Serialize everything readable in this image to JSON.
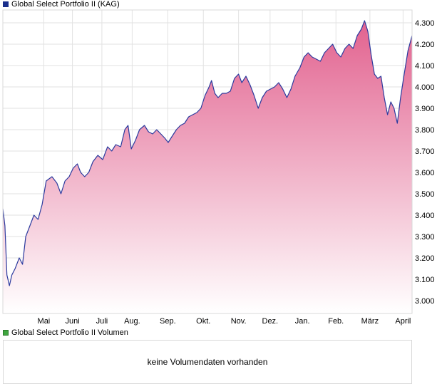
{
  "legend_price": {
    "label": "Global Select Portfolio II (KAG)",
    "color": "#1a2f8c"
  },
  "legend_volume": {
    "label": "Global Select Portfolio II Volumen",
    "color": "#3fa63f"
  },
  "volume_message": "keine Volumendaten vorhanden",
  "colors": {
    "line": "#2b3a9e",
    "fill_top": "#e2628f",
    "fill_bottom": "#ffffff",
    "grid": "#e2e2e2",
    "border": "#d8d8d8"
  },
  "chart_data": {
    "type": "area",
    "xlabel": "",
    "ylabel": "",
    "ylim": [
      2.94,
      4.36
    ],
    "y_ticks": [
      3.0,
      3.1,
      3.2,
      3.3,
      3.4,
      3.5,
      3.6,
      3.7,
      3.8,
      3.9,
      4.0,
      4.1,
      4.2,
      4.3
    ],
    "y_tick_labels": [
      "3.000",
      "3.100",
      "3.200",
      "3.300",
      "3.400",
      "3.500",
      "3.600",
      "3.700",
      "3.800",
      "3.900",
      "4.000",
      "4.100",
      "4.200",
      "4.300"
    ],
    "x_ticks": [
      {
        "label": "Mai",
        "pos": 0.1
      },
      {
        "label": "Juni",
        "pos": 0.17
      },
      {
        "label": "Juli",
        "pos": 0.242
      },
      {
        "label": "Aug.",
        "pos": 0.316
      },
      {
        "label": "Sep.",
        "pos": 0.403
      },
      {
        "label": "Okt.",
        "pos": 0.49
      },
      {
        "label": "Nov.",
        "pos": 0.576
      },
      {
        "label": "Dez.",
        "pos": 0.653
      },
      {
        "label": "Jan.",
        "pos": 0.732
      },
      {
        "label": "Feb.",
        "pos": 0.814
      },
      {
        "label": "März",
        "pos": 0.897
      },
      {
        "label": "April",
        "pos": 0.978
      }
    ],
    "series": [
      {
        "name": "Global Select Portfolio II (KAG)",
        "points": [
          [
            0.0,
            3.43
          ],
          [
            0.005,
            3.35
          ],
          [
            0.01,
            3.12
          ],
          [
            0.016,
            3.07
          ],
          [
            0.022,
            3.12
          ],
          [
            0.03,
            3.15
          ],
          [
            0.04,
            3.2
          ],
          [
            0.048,
            3.17
          ],
          [
            0.056,
            3.3
          ],
          [
            0.066,
            3.35
          ],
          [
            0.076,
            3.4
          ],
          [
            0.086,
            3.38
          ],
          [
            0.096,
            3.45
          ],
          [
            0.106,
            3.56
          ],
          [
            0.12,
            3.58
          ],
          [
            0.132,
            3.55
          ],
          [
            0.142,
            3.5
          ],
          [
            0.152,
            3.56
          ],
          [
            0.162,
            3.58
          ],
          [
            0.172,
            3.62
          ],
          [
            0.182,
            3.64
          ],
          [
            0.19,
            3.6
          ],
          [
            0.2,
            3.58
          ],
          [
            0.21,
            3.6
          ],
          [
            0.22,
            3.65
          ],
          [
            0.232,
            3.68
          ],
          [
            0.244,
            3.66
          ],
          [
            0.256,
            3.72
          ],
          [
            0.266,
            3.7
          ],
          [
            0.276,
            3.73
          ],
          [
            0.288,
            3.72
          ],
          [
            0.298,
            3.8
          ],
          [
            0.306,
            3.82
          ],
          [
            0.314,
            3.71
          ],
          [
            0.324,
            3.75
          ],
          [
            0.334,
            3.8
          ],
          [
            0.346,
            3.82
          ],
          [
            0.356,
            3.79
          ],
          [
            0.366,
            3.78
          ],
          [
            0.376,
            3.8
          ],
          [
            0.386,
            3.78
          ],
          [
            0.396,
            3.76
          ],
          [
            0.404,
            3.74
          ],
          [
            0.414,
            3.77
          ],
          [
            0.424,
            3.8
          ],
          [
            0.434,
            3.82
          ],
          [
            0.444,
            3.83
          ],
          [
            0.454,
            3.86
          ],
          [
            0.464,
            3.87
          ],
          [
            0.474,
            3.88
          ],
          [
            0.484,
            3.9
          ],
          [
            0.494,
            3.96
          ],
          [
            0.504,
            4.0
          ],
          [
            0.51,
            4.03
          ],
          [
            0.518,
            3.97
          ],
          [
            0.526,
            3.95
          ],
          [
            0.536,
            3.97
          ],
          [
            0.546,
            3.97
          ],
          [
            0.556,
            3.98
          ],
          [
            0.566,
            4.04
          ],
          [
            0.576,
            4.06
          ],
          [
            0.584,
            4.02
          ],
          [
            0.594,
            4.05
          ],
          [
            0.604,
            4.01
          ],
          [
            0.614,
            3.96
          ],
          [
            0.624,
            3.9
          ],
          [
            0.634,
            3.95
          ],
          [
            0.644,
            3.98
          ],
          [
            0.654,
            3.99
          ],
          [
            0.664,
            4.0
          ],
          [
            0.674,
            4.02
          ],
          [
            0.684,
            3.99
          ],
          [
            0.694,
            3.95
          ],
          [
            0.704,
            3.99
          ],
          [
            0.714,
            4.05
          ],
          [
            0.726,
            4.09
          ],
          [
            0.736,
            4.14
          ],
          [
            0.746,
            4.16
          ],
          [
            0.756,
            4.14
          ],
          [
            0.766,
            4.13
          ],
          [
            0.776,
            4.12
          ],
          [
            0.786,
            4.16
          ],
          [
            0.796,
            4.18
          ],
          [
            0.806,
            4.2
          ],
          [
            0.816,
            4.16
          ],
          [
            0.826,
            4.14
          ],
          [
            0.836,
            4.18
          ],
          [
            0.846,
            4.2
          ],
          [
            0.856,
            4.18
          ],
          [
            0.866,
            4.24
          ],
          [
            0.876,
            4.27
          ],
          [
            0.884,
            4.31
          ],
          [
            0.892,
            4.26
          ],
          [
            0.9,
            4.15
          ],
          [
            0.908,
            4.06
          ],
          [
            0.916,
            4.04
          ],
          [
            0.924,
            4.05
          ],
          [
            0.932,
            3.95
          ],
          [
            0.94,
            3.87
          ],
          [
            0.948,
            3.93
          ],
          [
            0.956,
            3.9
          ],
          [
            0.964,
            3.83
          ],
          [
            0.972,
            3.95
          ],
          [
            0.98,
            4.05
          ],
          [
            0.99,
            4.17
          ],
          [
            1.0,
            4.24
          ]
        ]
      }
    ]
  }
}
